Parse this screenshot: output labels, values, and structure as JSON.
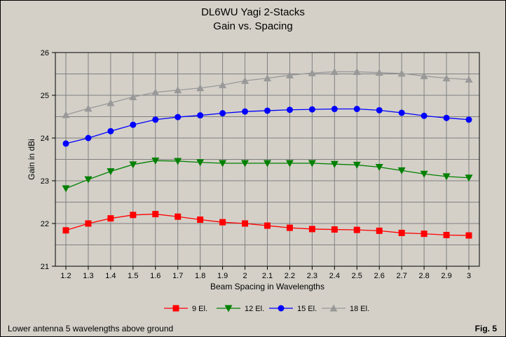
{
  "chart_data": {
    "type": "line",
    "title": "DL6WU Yagi 2-Stacks",
    "subtitle": "Gain vs. Spacing",
    "xlabel": "Beam Spacing in Wavelengths",
    "ylabel": "Gain in dBi",
    "x": [
      1.2,
      1.3,
      1.4,
      1.5,
      1.6,
      1.7,
      1.8,
      1.9,
      2.0,
      2.1,
      2.2,
      2.3,
      2.4,
      2.5,
      2.6,
      2.7,
      2.8,
      2.9,
      3.0
    ],
    "x_tick_labels": [
      "1.2",
      "1.3",
      "1.4",
      "1.5",
      "1.6",
      "1.7",
      "1.8",
      "1.9",
      "2",
      "2.1",
      "2.2",
      "2.3",
      "2.4",
      "2.5",
      "2.6",
      "2.7",
      "2.8",
      "2.9",
      "3"
    ],
    "y_ticks": [
      21,
      22,
      23,
      24,
      25,
      26
    ],
    "ylim": [
      21,
      26
    ],
    "grid": true,
    "legend_position": "bottom",
    "series": [
      {
        "name": "9 El.",
        "color": "#ff0000",
        "marker": "square",
        "values": [
          21.84,
          22.0,
          22.12,
          22.2,
          22.22,
          22.16,
          22.09,
          22.03,
          22.0,
          21.95,
          21.9,
          21.87,
          21.86,
          21.85,
          21.83,
          21.78,
          21.76,
          21.73,
          21.72
        ]
      },
      {
        "name": "12 El.",
        "color": "#008000",
        "marker": "triangle-down",
        "values": [
          22.82,
          23.03,
          23.22,
          23.38,
          23.47,
          23.46,
          23.43,
          23.41,
          23.41,
          23.41,
          23.41,
          23.41,
          23.39,
          23.37,
          23.32,
          23.24,
          23.16,
          23.1,
          23.07
        ]
      },
      {
        "name": "15 El.",
        "color": "#0000ff",
        "marker": "circle",
        "values": [
          23.87,
          24.0,
          24.16,
          24.31,
          24.43,
          24.49,
          24.53,
          24.58,
          24.62,
          24.64,
          24.66,
          24.67,
          24.68,
          24.68,
          24.65,
          24.59,
          24.52,
          24.47,
          24.43
        ]
      },
      {
        "name": "18 El.",
        "color": "#999999",
        "marker": "triangle-up",
        "values": [
          24.54,
          24.69,
          24.82,
          24.96,
          25.07,
          25.12,
          25.17,
          25.24,
          25.34,
          25.4,
          25.47,
          25.52,
          25.55,
          25.55,
          25.53,
          25.51,
          25.45,
          25.4,
          25.37
        ]
      }
    ]
  },
  "footnote": "Lower antenna 5 wavelengths above ground",
  "figure_label": "Fig. 5"
}
